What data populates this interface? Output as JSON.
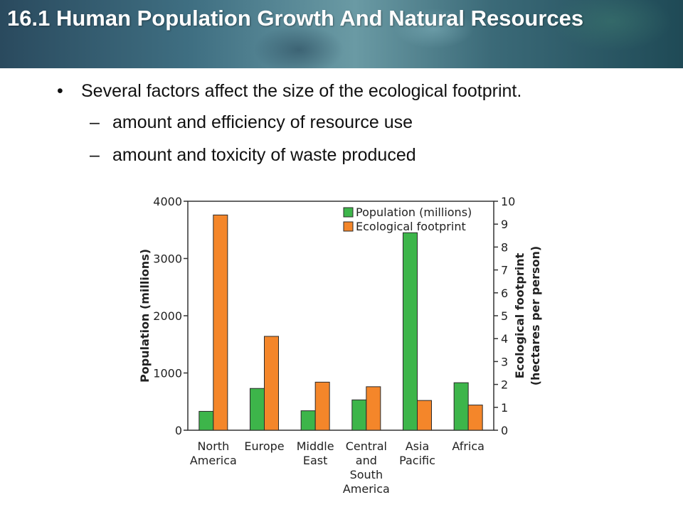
{
  "slide": {
    "title": "16.1 Human Population Growth And Natural Resources",
    "bullets": [
      {
        "marker": "•",
        "text": "Several factors affect the size of the ecological footprint."
      }
    ],
    "sub_bullets": [
      {
        "marker": "–",
        "text": "amount and efficiency of resource use"
      },
      {
        "marker": "–",
        "text": "amount and toxicity of waste produced"
      }
    ]
  },
  "chart_data": {
    "type": "bar",
    "categories": [
      [
        "North",
        "America"
      ],
      [
        "Europe"
      ],
      [
        "Middle",
        "East"
      ],
      [
        "Central",
        "and",
        "South",
        "America"
      ],
      [
        "Asia",
        "Pacific"
      ],
      [
        "Africa"
      ]
    ],
    "series": [
      {
        "name": "Population (millions)",
        "axis": "left",
        "color": "#3db54a",
        "values": [
          330,
          730,
          340,
          530,
          3450,
          830
        ]
      },
      {
        "name": "Ecological footprint",
        "axis": "right",
        "color": "#f4862a",
        "values": [
          9.4,
          4.1,
          2.1,
          1.9,
          1.3,
          1.1
        ]
      }
    ],
    "ylabel_left": "Population (millions)",
    "ylabel_right": [
      "Ecological footprint",
      "(hectares per person)"
    ],
    "ylim_left": [
      0,
      4000
    ],
    "yticks_left": [
      "0",
      "1000",
      "2000",
      "3000",
      "4000"
    ],
    "ylim_right": [
      0,
      10
    ],
    "yticks_right": [
      "0",
      "1",
      "2",
      "3",
      "4",
      "5",
      "6",
      "7",
      "8",
      "9",
      "10"
    ],
    "legend_position": "top-right",
    "grid": false
  }
}
